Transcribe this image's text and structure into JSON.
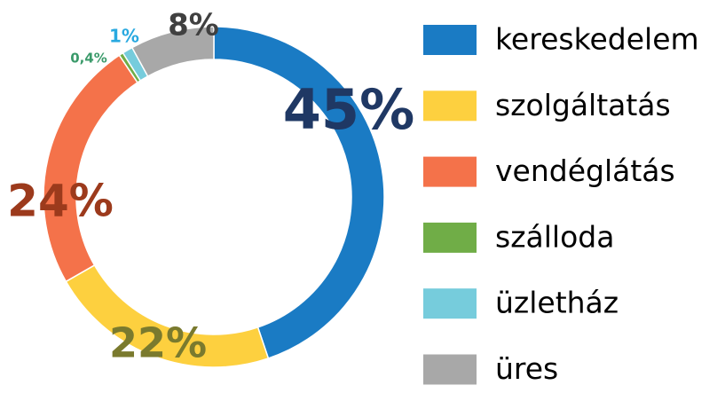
{
  "chart_data": {
    "type": "donut",
    "categories": [
      "kereskedelem",
      "szolgáltatás",
      "vendéglátás",
      "szálloda",
      "üzletház",
      "üres"
    ],
    "values": [
      45,
      22,
      24,
      0.4,
      1,
      8
    ],
    "value_labels": [
      "45%",
      "22%",
      "24%",
      "0,4%",
      "1%",
      "8%"
    ],
    "colors": [
      "#1a7bc4",
      "#fdd03f",
      "#f4724a",
      "#70ad47",
      "#76ccdc",
      "#a8a8a8"
    ],
    "label_colors": [
      "#1f3864",
      "#7a7a2e",
      "#9c3a1c",
      "#3a9a6a",
      "#29a9e0",
      "#404040"
    ],
    "legend": "right"
  }
}
